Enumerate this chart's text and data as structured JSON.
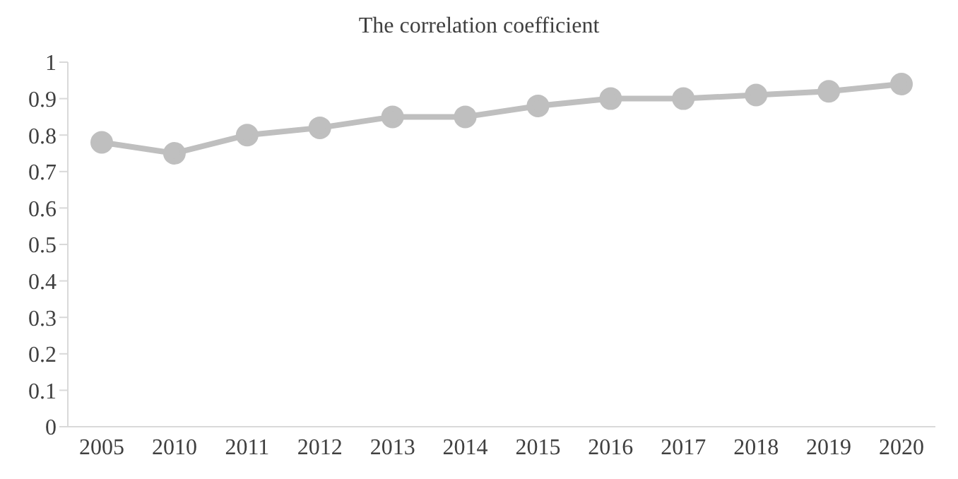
{
  "chart_data": {
    "type": "line",
    "title": "The correlation coefficient",
    "categories": [
      "2005",
      "2010",
      "2011",
      "2012",
      "2013",
      "2014",
      "2015",
      "2016",
      "2017",
      "2018",
      "2019",
      "2020"
    ],
    "series": [
      {
        "color": "#bfbfbf",
        "values": [
          0.78,
          0.75,
          0.8,
          0.82,
          0.85,
          0.85,
          0.88,
          0.9,
          0.9,
          0.91,
          0.92,
          0.94
        ]
      }
    ],
    "ylim": [
      0,
      1
    ],
    "yticks": [
      0,
      0.1,
      0.2,
      0.3,
      0.4,
      0.5,
      0.6,
      0.7,
      0.8,
      0.9,
      1
    ],
    "grid": false,
    "legend": false,
    "marker": "circle",
    "line_style": "solid"
  }
}
